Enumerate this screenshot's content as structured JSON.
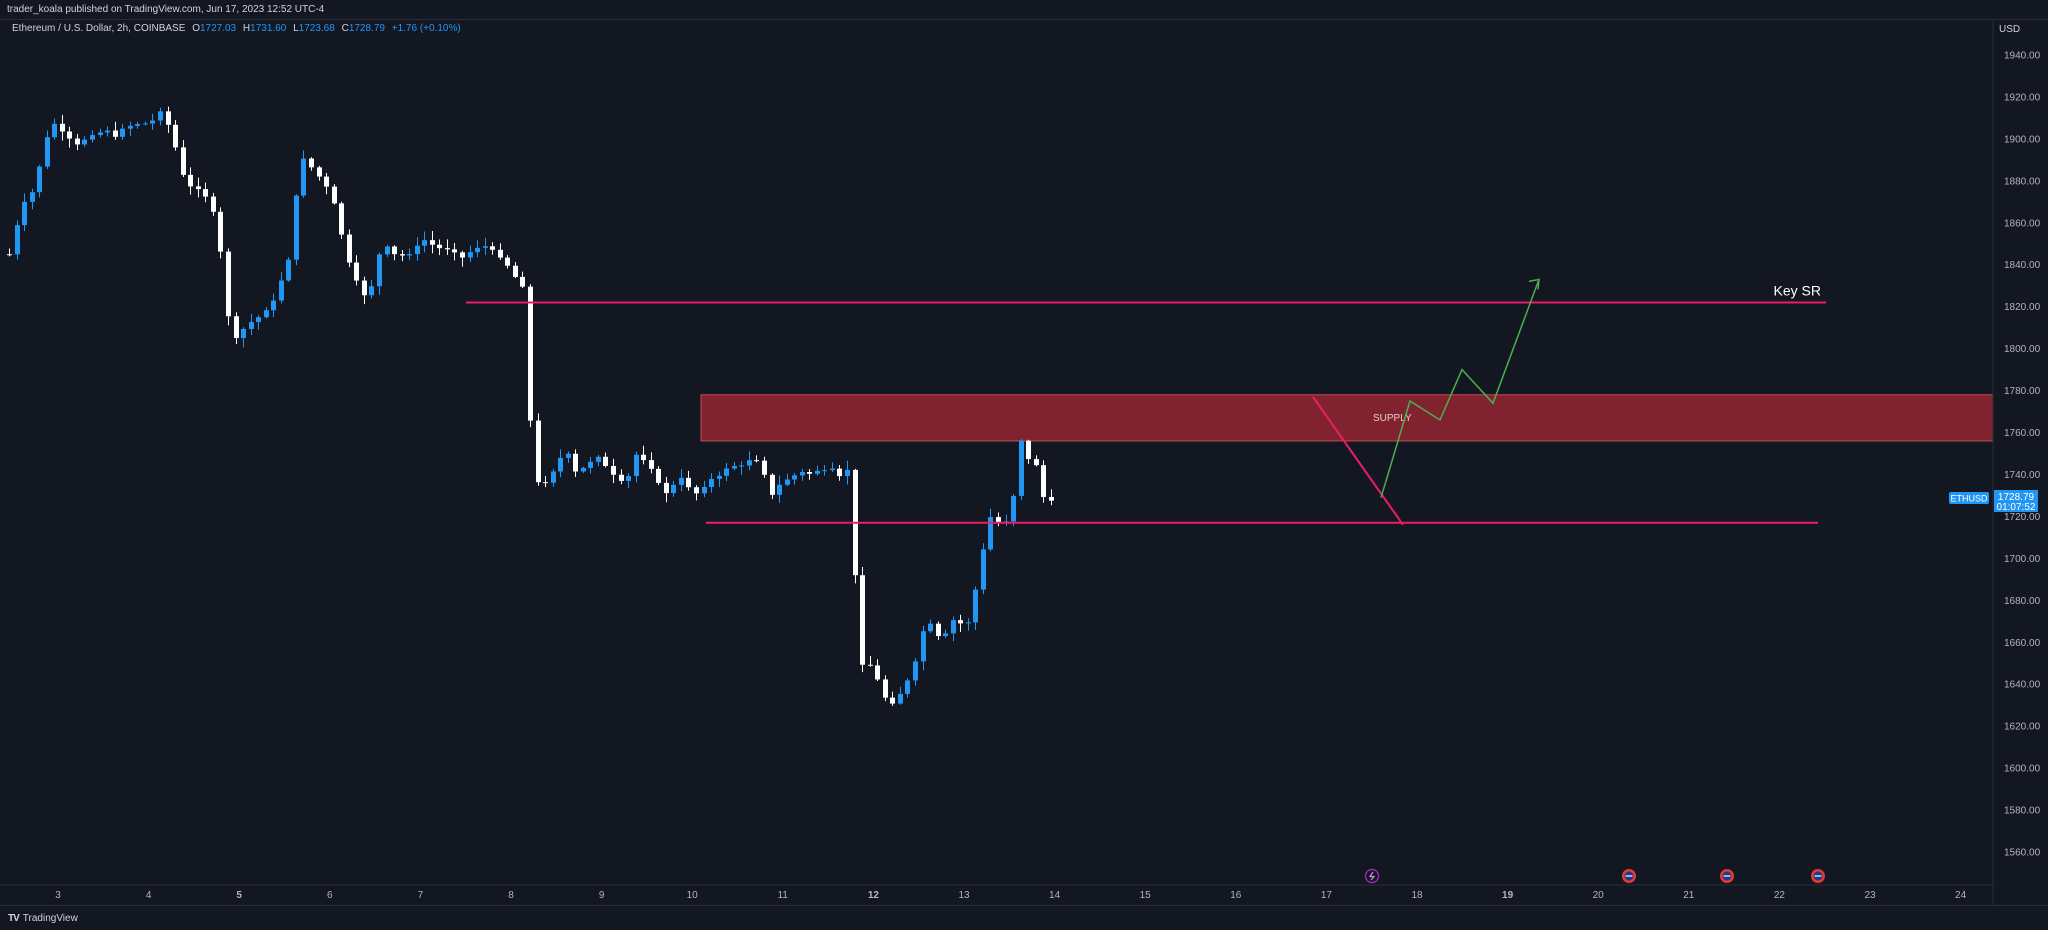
{
  "header": {
    "published": "trader_koala published on TradingView.com, Jun 17, 2023 12:52 UTC-4",
    "symbol": "Ethereum / U.S. Dollar, 2h, COINBASE",
    "o_label": "O",
    "o": "1727.03",
    "h_label": "H",
    "h": "1731.60",
    "l_label": "L",
    "l": "1723.68",
    "c_label": "C",
    "c": "1728.79",
    "change": "+1.76 (+0.10%)"
  },
  "footer": {
    "logo": "TV",
    "brand": "TradingView"
  },
  "price_axis": {
    "currency": "USD",
    "ticks": [
      "1940.00",
      "1920.00",
      "1900.00",
      "1880.00",
      "1860.00",
      "1840.00",
      "1820.00",
      "1800.00",
      "1780.00",
      "1760.00",
      "1740.00",
      "1720.00",
      "1700.00",
      "1680.00",
      "1660.00",
      "1640.00",
      "1620.00",
      "1600.00",
      "1580.00",
      "1560.00"
    ],
    "current_price": "1728.79",
    "countdown": "01:07:52",
    "symbol_tag": "ETHUSD"
  },
  "annotations": {
    "key_sr_label": "Key SR",
    "supply_label": "SUPPLY",
    "key_sr_price": 1822,
    "support_price": 1717,
    "supply_zone": [
      1756,
      1778
    ]
  },
  "colors": {
    "background": "#131722",
    "up": "#2196f3",
    "down": "#ffffff",
    "sr_line": "#e91e63",
    "supply_fill": "#8b2530",
    "projection": "#4caf50",
    "price_tag": "#2196f3"
  },
  "chart_data": {
    "type": "candlestick",
    "interval": "2h",
    "x_ticks": [
      "3",
      "4",
      "5",
      "6",
      "7",
      "8",
      "9",
      "10",
      "11",
      "12",
      "13",
      "14",
      "15",
      "16",
      "17",
      "18",
      "19",
      "20",
      "21",
      "22",
      "23",
      "24"
    ],
    "x_ticks_bold": [
      "5",
      "12",
      "19"
    ],
    "ylim": [
      1545,
      1955
    ],
    "anchors": [
      [
        1821,
        2
      ],
      [
        1845,
        9
      ],
      [
        1870,
        22
      ],
      [
        1876,
        34
      ],
      [
        1908,
        50
      ],
      [
        1906,
        59
      ],
      [
        1898,
        76
      ],
      [
        1900,
        90
      ],
      [
        1904,
        103
      ],
      [
        1902,
        115
      ],
      [
        1906,
        130
      ],
      [
        1908,
        150
      ],
      [
        1912,
        160
      ],
      [
        1905,
        170
      ],
      [
        1884,
        182
      ],
      [
        1878,
        190
      ],
      [
        1874,
        200
      ],
      [
        1870,
        210
      ],
      [
        1860,
        218
      ],
      [
        1822,
        225
      ],
      [
        1805,
        232
      ],
      [
        1808,
        240
      ],
      [
        1812,
        248
      ],
      [
        1818,
        268
      ],
      [
        1840,
        288
      ],
      [
        1872,
        295
      ],
      [
        1890,
        303
      ],
      [
        1886,
        312
      ],
      [
        1880,
        322
      ],
      [
        1876,
        330
      ],
      [
        1868,
        335
      ],
      [
        1856,
        340
      ],
      [
        1848,
        345
      ],
      [
        1840,
        350
      ],
      [
        1830,
        360
      ],
      [
        1822,
        366
      ],
      [
        1830,
        372
      ],
      [
        1844,
        377
      ],
      [
        1850,
        386
      ],
      [
        1845,
        395
      ],
      [
        1844,
        410
      ],
      [
        1853,
        420
      ],
      [
        1850,
        430
      ],
      [
        1848,
        440
      ],
      [
        1846,
        450
      ],
      [
        1843,
        460
      ],
      [
        1846,
        470
      ],
      [
        1848,
        480
      ],
      [
        1850,
        490
      ],
      [
        1842,
        500
      ],
      [
        1838,
        510
      ],
      [
        1830,
        520
      ],
      [
        1826,
        526
      ],
      [
        1750,
        531
      ],
      [
        1732,
        540
      ],
      [
        1738,
        550
      ],
      [
        1748,
        560
      ],
      [
        1752,
        565
      ],
      [
        1750,
        570
      ],
      [
        1742,
        575
      ],
      [
        1744,
        585
      ],
      [
        1748,
        600
      ],
      [
        1742,
        610
      ],
      [
        1738,
        620
      ],
      [
        1740,
        630
      ],
      [
        1750,
        636
      ],
      [
        1742,
        650
      ],
      [
        1736,
        660
      ],
      [
        1730,
        665
      ],
      [
        1740,
        680
      ],
      [
        1732,
        690
      ],
      [
        1730,
        700
      ],
      [
        1738,
        710
      ],
      [
        1742,
        725
      ],
      [
        1745,
        740
      ],
      [
        1747,
        755
      ],
      [
        1738,
        765
      ],
      [
        1730,
        770
      ],
      [
        1736,
        780
      ],
      [
        1738,
        790
      ],
      [
        1742,
        800
      ],
      [
        1740,
        810
      ],
      [
        1742,
        820
      ],
      [
        1745,
        830
      ],
      [
        1740,
        840
      ],
      [
        1742,
        848
      ],
      [
        1718,
        853
      ],
      [
        1655,
        857
      ],
      [
        1648,
        862
      ],
      [
        1650,
        868
      ],
      [
        1645,
        875
      ],
      [
        1640,
        880
      ],
      [
        1633,
        885
      ],
      [
        1628,
        890
      ],
      [
        1635,
        900
      ],
      [
        1643,
        908
      ],
      [
        1648,
        913
      ],
      [
        1662,
        920
      ],
      [
        1672,
        928
      ],
      [
        1665,
        935
      ],
      [
        1662,
        942
      ],
      [
        1670,
        950
      ],
      [
        1672,
        957
      ],
      [
        1665,
        965
      ],
      [
        1675,
        972
      ],
      [
        1690,
        977
      ],
      [
        1710,
        985
      ],
      [
        1720,
        990
      ],
      [
        1716,
        1000
      ],
      [
        1718,
        1012
      ],
      [
        1757,
        1016
      ],
      [
        1755,
        1022
      ],
      [
        1748,
        1028
      ],
      [
        1745,
        1035
      ],
      [
        1738,
        1040
      ],
      [
        1725,
        1045
      ],
      [
        1728.79,
        1051
      ]
    ]
  }
}
